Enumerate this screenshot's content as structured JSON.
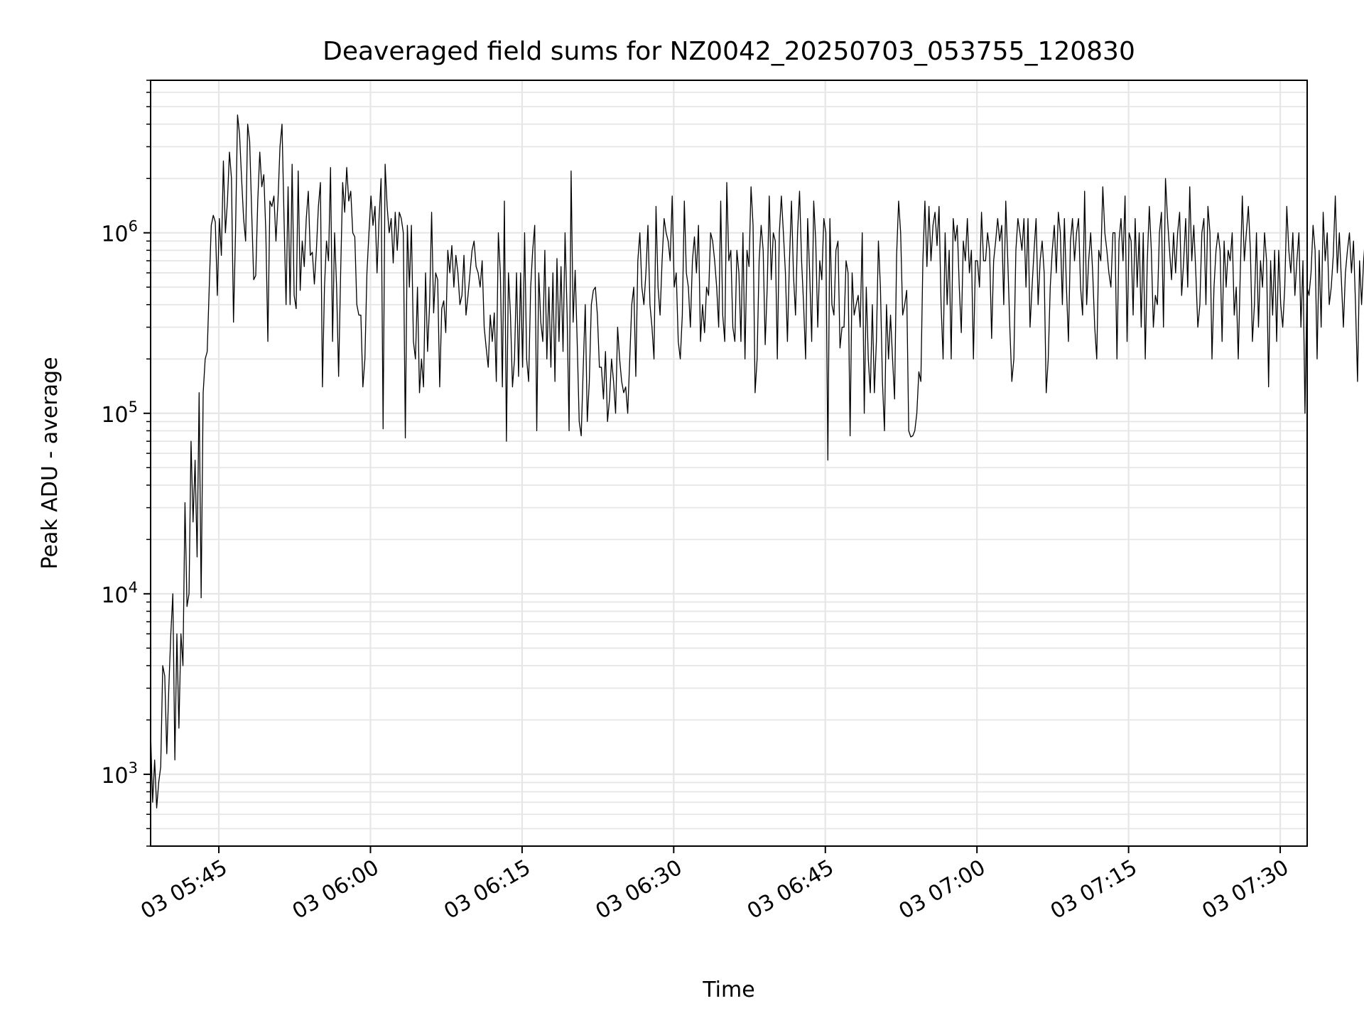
{
  "chart_data": {
    "type": "line",
    "title": "Deaveraged field sums for NZ0042_20250703_053755_120830",
    "xlabel": "Time",
    "ylabel": "Peak ADU - average",
    "yscale": "log",
    "ylim": [
      400,
      7000000
    ],
    "xlim": [
      "2025-07-03 05:38:15",
      "2025-07-03 07:32:40"
    ],
    "grid": true,
    "line_color": "#000000",
    "grid_color": "#e6e6e6",
    "x_ticks": [
      {
        "time": "2025-07-03 05:45:00",
        "label": "03 05:45"
      },
      {
        "time": "2025-07-03 06:00:00",
        "label": "03 06:00"
      },
      {
        "time": "2025-07-03 06:15:00",
        "label": "03 06:15"
      },
      {
        "time": "2025-07-03 06:30:00",
        "label": "03 06:30"
      },
      {
        "time": "2025-07-03 06:45:00",
        "label": "03 06:45"
      },
      {
        "time": "2025-07-03 07:00:00",
        "label": "03 07:00"
      },
      {
        "time": "2025-07-03 07:15:00",
        "label": "03 07:15"
      },
      {
        "time": "2025-07-03 07:30:00",
        "label": "03 07:30"
      }
    ],
    "y_ticks": [
      {
        "value": 1000,
        "base": "10",
        "exp": "3"
      },
      {
        "value": 10000,
        "base": "10",
        "exp": "4"
      },
      {
        "value": 100000,
        "base": "10",
        "exp": "5"
      },
      {
        "value": 1000000,
        "base": "10",
        "exp": "6"
      }
    ],
    "series": [
      {
        "x_start": "2025-07-03 05:38:15",
        "x_step_seconds": 12,
        "values": [
          1700,
          700,
          1200,
          650,
          900,
          1100,
          4000,
          3500,
          1300,
          3000,
          6000,
          10000,
          1200,
          6000,
          1800,
          6000,
          4000,
          32000,
          8500,
          10000,
          70000,
          25000,
          55000,
          16000,
          130000,
          9500,
          130000,
          200000,
          220000,
          500000,
          1100000,
          1250000,
          1150000,
          450000,
          1200000,
          750000,
          2500000,
          1000000,
          1500000,
          2800000,
          2000000,
          320000,
          1000000,
          4500000,
          3500000,
          2000000,
          1200000,
          900000,
          4000000,
          3200000,
          1300000,
          550000,
          580000,
          1500000,
          2800000,
          1800000,
          2100000,
          1000000,
          250000,
          1500000,
          1400000,
          1600000,
          900000,
          1500000,
          3000000,
          4000000,
          1200000,
          400000,
          1800000,
          400000,
          2400000,
          450000,
          380000,
          2200000,
          480000,
          900000,
          650000,
          1200000,
          1700000,
          750000,
          780000,
          520000,
          800000,
          1400000,
          1900000,
          140000,
          500000,
          900000,
          700000,
          2300000,
          250000,
          1000000,
          500000,
          160000,
          600000,
          1900000,
          1300000,
          2300000,
          1500000,
          1700000,
          1000000,
          950000,
          400000,
          350000,
          350000,
          140000,
          200000,
          600000,
          1000000,
          1600000,
          1100000,
          1400000,
          600000,
          1200000,
          2000000,
          82000,
          2400000,
          1400000,
          1000000,
          1200000,
          680000,
          1300000,
          800000,
          1300000,
          1200000,
          1000000,
          73000,
          1100000,
          500000,
          1100000,
          250000,
          200000,
          500000,
          130000,
          200000,
          140000,
          600000,
          220000,
          400000,
          1300000,
          360000,
          600000,
          550000,
          140000,
          380000,
          420000,
          280000,
          800000,
          600000,
          850000,
          500000,
          750000,
          600000,
          400000,
          450000,
          750000,
          350000,
          450000,
          600000,
          800000,
          900000,
          650000,
          600000,
          500000,
          700000,
          300000,
          230000,
          180000,
          350000,
          250000,
          360000,
          150000,
          1000000,
          600000,
          140000,
          1500000,
          70000,
          600000,
          350000,
          140000,
          200000,
          600000,
          160000,
          600000,
          180000,
          1000000,
          200000,
          150000,
          500000,
          800000,
          1100000,
          80000,
          600000,
          320000,
          250000,
          800000,
          200000,
          500000,
          180000,
          600000,
          150000,
          720000,
          250000,
          650000,
          220000,
          1000000,
          360000,
          80000,
          2200000,
          320000,
          620000,
          250000,
          90000,
          75000,
          180000,
          400000,
          90000,
          150000,
          400000,
          480000,
          500000,
          350000,
          180000,
          180000,
          120000,
          220000,
          90000,
          120000,
          200000,
          150000,
          100000,
          300000,
          200000,
          150000,
          130000,
          140000,
          100000,
          200000,
          400000,
          500000,
          160000,
          700000,
          1000000,
          500000,
          400000,
          600000,
          1100000,
          400000,
          300000,
          200000,
          1400000,
          500000,
          350000,
          700000,
          1200000,
          1000000,
          900000,
          700000,
          1600000,
          500000,
          600000,
          250000,
          200000,
          350000,
          1500000,
          600000,
          500000,
          300000,
          700000,
          950000,
          600000,
          1100000,
          250000,
          400000,
          280000,
          500000,
          450000,
          1000000,
          900000,
          700000,
          500000,
          300000,
          1500000,
          350000,
          250000,
          1900000,
          700000,
          800000,
          300000,
          250000,
          800000,
          600000,
          250000,
          1000000,
          200000,
          800000,
          650000,
          1800000,
          1100000,
          130000,
          200000,
          700000,
          1100000,
          800000,
          240000,
          500000,
          1600000,
          550000,
          1000000,
          900000,
          200000,
          1000000,
          1600000,
          1000000,
          600000,
          250000,
          700000,
          1500000,
          580000,
          350000,
          1000000,
          1700000,
          700000,
          400000,
          200000,
          1200000,
          600000,
          250000,
          1500000,
          900000,
          300000,
          700000,
          550000,
          1200000,
          1000000,
          55000,
          1200000,
          400000,
          350000,
          800000,
          900000,
          230000,
          300000,
          300000,
          700000,
          600000,
          75000,
          600000,
          350000,
          400000,
          450000,
          300000,
          1000000,
          100000,
          500000,
          200000,
          130000,
          400000,
          130000,
          250000,
          900000,
          500000,
          150000,
          80000,
          400000,
          200000,
          350000,
          200000,
          120000,
          750000,
          1500000,
          1000000,
          350000,
          400000,
          480000,
          80000,
          74000,
          75000,
          80000,
          100000,
          170000,
          150000,
          700000,
          1500000,
          650000,
          1400000,
          700000,
          1100000,
          1300000,
          850000,
          1400000,
          400000,
          200000,
          1000000,
          400000,
          800000,
          200000,
          1200000,
          900000,
          1100000,
          500000,
          280000,
          900000,
          700000,
          1200000,
          600000,
          800000,
          200000,
          700000,
          700000,
          500000,
          1300000,
          700000,
          700000,
          1000000,
          800000,
          260000,
          700000,
          900000,
          1200000,
          900000,
          1100000,
          400000,
          1500000,
          700000,
          300000,
          150000,
          200000,
          800000,
          1200000,
          1000000,
          800000,
          1200000,
          500000,
          1200000,
          300000,
          500000,
          800000,
          1200000,
          400000,
          700000,
          900000,
          600000,
          130000,
          200000,
          500000,
          800000,
          1100000,
          600000,
          1300000,
          1000000,
          400000,
          1200000,
          500000,
          250000,
          900000,
          1200000,
          700000,
          1000000,
          1200000,
          500000,
          350000,
          1700000,
          400000,
          700000,
          1000000,
          600000,
          300000,
          200000,
          800000,
          700000,
          1800000,
          1000000,
          800000,
          600000,
          500000,
          1000000,
          1000000,
          200000,
          900000,
          1200000,
          700000,
          1600000,
          250000,
          1000000,
          900000,
          350000,
          1200000,
          500000,
          1000000,
          300000,
          1000000,
          200000,
          700000,
          1400000,
          800000,
          300000,
          450000,
          400000,
          1000000,
          1300000,
          300000,
          2000000,
          1200000,
          800000,
          550000,
          1000000,
          600000,
          1000000,
          1300000,
          450000,
          700000,
          1200000,
          500000,
          1800000,
          700000,
          1100000,
          600000,
          300000,
          400000,
          1000000,
          1200000,
          400000,
          1400000,
          1000000,
          200000,
          500000,
          800000,
          1000000,
          800000,
          250000,
          900000,
          500000,
          800000,
          700000,
          1000000,
          350000,
          500000,
          200000,
          600000,
          1600000,
          700000,
          1000000,
          1400000,
          800000,
          250000,
          400000,
          1000000,
          300000,
          700000,
          500000,
          1000000,
          700000,
          140000,
          700000,
          350000,
          800000,
          250000,
          800000,
          400000,
          300000,
          500000,
          1400000,
          800000,
          600000,
          1000000,
          450000,
          700000,
          1000000,
          300000,
          700000,
          100000,
          500000,
          450000,
          600000,
          1100000,
          800000,
          200000,
          800000,
          300000,
          1300000,
          700000,
          1000000,
          400000,
          500000,
          750000,
          1600000,
          600000,
          1000000,
          550000,
          300000,
          600000,
          800000,
          1000000,
          600000,
          900000,
          400000,
          150000,
          700000,
          400000,
          700000,
          1000000,
          500000,
          800000,
          300000,
          800000,
          200000,
          800000,
          600000,
          500000,
          400000,
          1100000,
          600000,
          1400000,
          400000,
          1000000,
          300000,
          500000,
          250000,
          700000,
          1500000,
          300000,
          600000,
          1200000,
          150000,
          300000,
          450000,
          250000,
          1400000,
          200000,
          700000,
          400000,
          900000,
          500000,
          350000,
          1100000,
          400000,
          300000,
          1200000,
          500000,
          800000,
          1200000,
          500000,
          800000,
          650000,
          1000000,
          700000,
          400000,
          800000,
          1200000,
          400000,
          1000000,
          700000,
          1200000,
          300000,
          1000000,
          1100000,
          200000,
          1000000,
          900000,
          800000,
          1000000,
          1200000,
          800000,
          1100000,
          500000,
          700000,
          1000000,
          400000,
          1200000,
          800000,
          400000,
          200000,
          100000,
          500000,
          1000000,
          1200000,
          800000,
          400000,
          500000,
          300000,
          900000,
          1000000,
          250000,
          400000,
          600000,
          1200000,
          800000,
          700000,
          200000,
          600000,
          1100000,
          500000,
          1000000,
          600000,
          250000,
          300000,
          400000,
          1300000,
          900000,
          700000,
          700000,
          1200000,
          300000,
          800000,
          700000,
          1000000,
          300000,
          200000,
          150000,
          900000,
          1200000,
          1800000,
          700000,
          1000000,
          500000,
          1000000,
          300000,
          250000,
          500000,
          1100000,
          400000,
          1000000,
          300000,
          800000,
          700000,
          1100000,
          600000,
          800000,
          1000000,
          400000,
          700000,
          1200000,
          800000,
          900000,
          500000,
          1300000,
          700000,
          1400000,
          900000,
          400000,
          300000,
          500000,
          600000,
          700000,
          600000,
          800000,
          450000,
          300000,
          250000,
          700000,
          600000,
          500000,
          900000,
          200000,
          250000,
          450000,
          600000,
          1000000,
          700000,
          1200000,
          1000000,
          400000,
          500000,
          600000,
          600000,
          400000,
          300000,
          700000,
          500000,
          250000,
          130000,
          500000,
          1000000,
          400000,
          1100000,
          600000,
          1000000,
          700000,
          500000,
          1300000,
          100000,
          130000,
          900000,
          1200000,
          600000,
          1000000,
          1300000,
          500000,
          400000,
          800000,
          1000000,
          500000,
          450000,
          500000,
          350000,
          200000,
          100000,
          1800000,
          900000,
          500000,
          1600000,
          400000,
          700000,
          900000,
          800000,
          1000000,
          1200000,
          700000,
          1300000,
          800000,
          700000,
          700000
        ]
      }
    ]
  }
}
